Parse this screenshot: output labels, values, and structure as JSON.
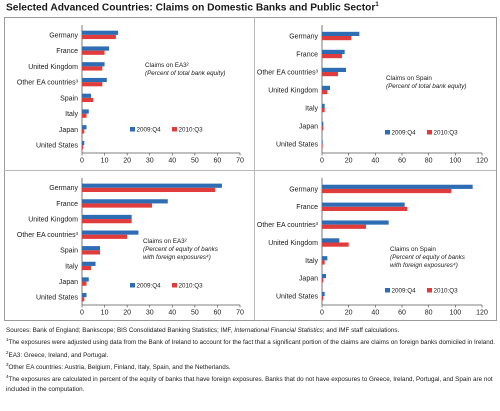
{
  "title": "Selected Advanced Countries: Claims on Domestic Banks and Public Sector",
  "title_note": "1",
  "colors": {
    "series1": "#2e6db4",
    "series2": "#e03c3c",
    "axis": "#555555",
    "text": "#1a1a1a"
  },
  "chart_data": [
    {
      "type": "bar",
      "orientation": "horizontal",
      "categories": [
        "Germany",
        "France",
        "United Kingdom",
        "Other EA countries³",
        "Spain",
        "Italy",
        "Japan",
        "United States"
      ],
      "series": [
        {
          "name": "2009:Q4",
          "values": [
            16,
            12,
            10,
            11,
            4,
            3,
            2,
            1
          ]
        },
        {
          "name": "2010:Q3",
          "values": [
            15,
            10,
            9,
            9,
            5,
            2,
            1,
            0.5
          ]
        }
      ],
      "xlim": [
        0,
        70
      ],
      "xticks": [
        "0",
        "10",
        "20",
        "30",
        "40",
        "50",
        "60",
        "70"
      ],
      "annotation": [
        "Claims on EA3²",
        "(Percent of total bank equity)"
      ],
      "legend_position": "lower-right"
    },
    {
      "type": "bar",
      "orientation": "horizontal",
      "categories": [
        "Germany",
        "France",
        "Other EA countries³",
        "United Kingdom",
        "Italy",
        "Japan",
        "United States"
      ],
      "series": [
        {
          "name": "2009:Q4",
          "values": [
            28,
            17,
            18,
            6,
            2,
            1,
            0.5
          ]
        },
        {
          "name": "2010:Q3",
          "values": [
            22,
            15,
            12,
            4,
            2,
            1,
            0.5
          ]
        }
      ],
      "xlim": [
        0,
        120
      ],
      "xticks": [
        "0",
        "20",
        "40",
        "60",
        "80",
        "100",
        "120"
      ],
      "annotation": [
        "Claims on Spain",
        "(Percent of total bank equity)"
      ],
      "legend_position": "lower-right"
    },
    {
      "type": "bar",
      "orientation": "horizontal",
      "categories": [
        "Germany",
        "France",
        "United Kingdom",
        "Other EA countries³",
        "Spain",
        "Italy",
        "Japan",
        "United States"
      ],
      "series": [
        {
          "name": "2009:Q4",
          "values": [
            62,
            38,
            22,
            25,
            8,
            6,
            3,
            2
          ]
        },
        {
          "name": "2010:Q3",
          "values": [
            59,
            31,
            22,
            20,
            8,
            4,
            2,
            1
          ]
        }
      ],
      "xlim": [
        0,
        70
      ],
      "xticks": [
        "0",
        "10",
        "20",
        "30",
        "40",
        "50",
        "60",
        "70"
      ],
      "annotation": [
        "Claims on EA3²",
        "(Percent of equity of banks",
        "with foreign exposures⁴)"
      ],
      "legend_position": "lower-right"
    },
    {
      "type": "bar",
      "orientation": "horizontal",
      "categories": [
        "Germany",
        "France",
        "Other EA countries³",
        "United Kingdom",
        "Italy",
        "Japan",
        "United States"
      ],
      "series": [
        {
          "name": "2009:Q4",
          "values": [
            113,
            62,
            50,
            13,
            4,
            3,
            2
          ]
        },
        {
          "name": "2010:Q3",
          "values": [
            97,
            64,
            33,
            20,
            2,
            1,
            1
          ]
        }
      ],
      "xlim": [
        0,
        120
      ],
      "xticks": [
        "0",
        "20",
        "40",
        "60",
        "80",
        "100",
        "120"
      ],
      "annotation": [
        "Claims on Spain",
        "(Percent of equity of banks",
        "with foreign exposures⁴)"
      ],
      "legend_position": "lower-right"
    }
  ],
  "notes": {
    "sources_lead": "Sources: Bank of England; Bankscope; BIS Consolidated Banking Statistics; IMF, ",
    "sources_italic": "International Financial Statistics",
    "sources_tail": "; and IMF staff calculations.",
    "note1_mark": "1",
    "note1": "The exposures were adjusted using data from the Bank of Ireland to account for the fact that a significant portion of the claims are claims on foreign banks domiciled in Ireland.",
    "note2_mark": "2",
    "note2": "EA3: Greece, Ireland, and Portugal.",
    "note3_mark": "3",
    "note3": "Other EA countries: Austria, Belgium, Finland, Italy, Spain, and the Netherlands.",
    "note4_mark": "4",
    "note4": "The exposures are calculated in percent of the equity of banks that have foreign exposures. Banks that do not have exposures to Greece, Ireland, Portugal, and Spain are not included in the computation."
  }
}
